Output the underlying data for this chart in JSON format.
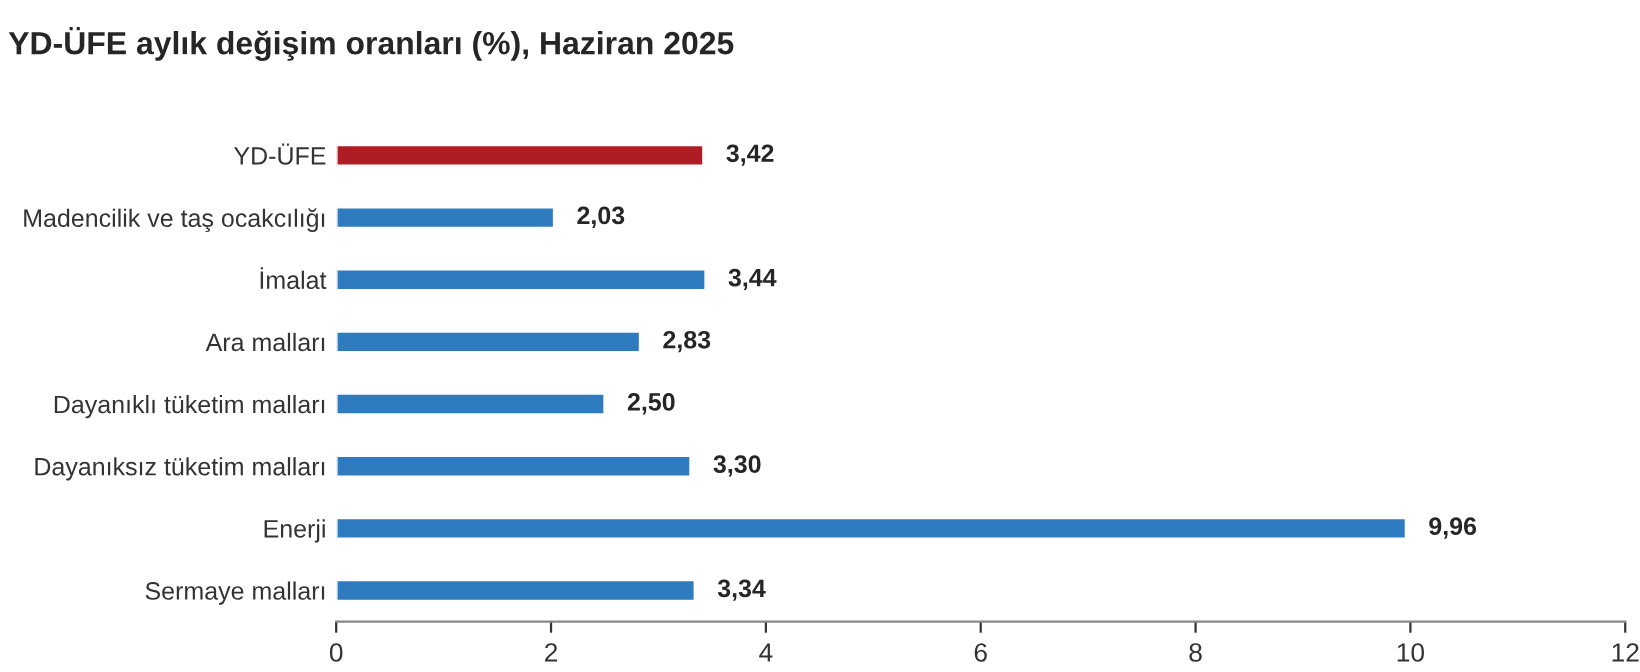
{
  "chart_data": {
    "type": "bar",
    "orientation": "horizontal",
    "title": "YD-ÜFE aylık değişim oranları (%), Haziran 2025",
    "categories": [
      "YD-ÜFE",
      "Madencilik ve taş ocakcılığı",
      "İmalat",
      "Ara malları",
      "Dayanıklı tüketim malları",
      "Dayanıksız tüketim malları",
      "Enerji",
      "Sermaye malları"
    ],
    "values": [
      3.42,
      2.03,
      3.44,
      2.83,
      2.5,
      3.3,
      9.96,
      3.34
    ],
    "colors": [
      "#b01c24",
      "#2e7bbf",
      "#2e7bbf",
      "#2e7bbf",
      "#2e7bbf",
      "#2e7bbf",
      "#2e7bbf",
      "#2e7bbf"
    ],
    "value_labels": [
      "3,42",
      "2,03",
      "3,44",
      "2,83",
      "2,50",
      "3,30",
      "9,96",
      "3,34"
    ],
    "xlim": [
      0,
      12
    ],
    "xticks": [
      0,
      2,
      4,
      6,
      8,
      10,
      12
    ],
    "grid": false,
    "legend": false
  }
}
